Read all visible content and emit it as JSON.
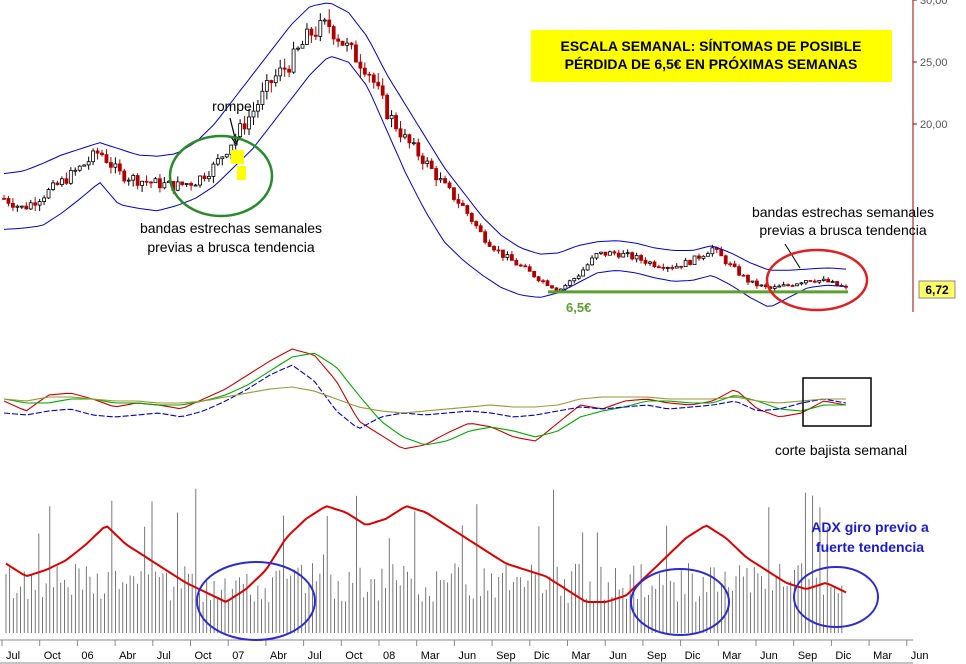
{
  "chart_data": {
    "type": "line",
    "title": "ESCALA SEMANAL: SÍNTOMAS DE POSIBLE",
    "subtitle": "PÉRDIDA DE 6,5€ EN PRÓXIMAS SEMANAS",
    "price_axis": {
      "ticks": [
        "30,00",
        "25,00",
        "20,00"
      ],
      "ylim": [
        4.5,
        30
      ]
    },
    "last_price": "6,72",
    "support_label": "6,5€",
    "support_value": 6.5,
    "x_labels": [
      "Jul",
      "Oct",
      "06",
      "Abr",
      "Jul",
      "Oct",
      "07",
      "Abr",
      "Jul",
      "Oct",
      "08",
      "Mar",
      "Jun",
      "Sep",
      "Dic",
      "Mar",
      "Jun",
      "Sep",
      "Dic",
      "Mar",
      "Jun",
      "Sep",
      "Dic",
      "Mar",
      "Jun"
    ],
    "series": [
      {
        "name": "",
        "color": "#000000",
        "values": [
          14.0,
          13.2,
          14.2,
          15.3,
          16.5,
          17.8,
          16.0,
          15.5,
          15.2,
          15.0,
          15.4,
          16.6,
          18.8,
          21.0,
          23.5,
          25.0,
          27.3,
          28.0,
          26.0,
          24.5,
          21.0,
          18.7,
          17.0,
          15.0,
          13.3,
          11.0,
          9.5,
          8.5,
          7.5,
          6.6,
          7.8,
          9.5,
          9.6,
          9.2,
          8.7,
          8.5,
          9.0,
          10.0,
          8.5,
          7.2,
          6.7,
          7.0,
          7.5,
          7.3,
          6.72
        ]
      },
      {
        "name": "",
        "color": "#0000cc",
        "values": [
          11.5,
          11.6,
          11.8,
          12.8,
          14.0,
          15.3,
          13.5,
          13.2,
          13.0,
          13.4,
          14.0,
          15.0,
          16.5,
          18.0,
          20.0,
          22.0,
          24.0,
          25.5,
          25.0,
          23.0,
          19.5,
          16.0,
          13.0,
          10.5,
          9.0,
          7.8,
          6.8,
          6.2,
          6.0,
          6.4,
          7.2,
          8.0,
          8.2,
          8.0,
          7.6,
          7.3,
          7.4,
          7.8,
          7.0,
          6.0,
          5.2,
          6.0,
          6.8,
          7.0,
          6.9
        ]
      },
      {
        "name": "",
        "color": "#0000cc",
        "values": [
          16.0,
          16.2,
          16.8,
          17.5,
          18.0,
          18.5,
          18.0,
          17.5,
          17.4,
          17.6,
          18.5,
          20.0,
          22.0,
          24.0,
          26.0,
          28.0,
          29.5,
          29.8,
          29.0,
          27.0,
          24.0,
          21.5,
          19.0,
          16.5,
          14.5,
          12.5,
          11.0,
          10.0,
          9.5,
          9.6,
          10.2,
          10.5,
          10.6,
          10.4,
          10.0,
          9.8,
          9.8,
          10.2,
          9.6,
          8.8,
          8.2,
          8.2,
          8.3,
          8.4,
          8.3
        ]
      }
    ],
    "indicators": {
      "oscillator": [
        {
          "color": "#cc0000",
          "values": [
            0.2,
            -0.3,
            0.5,
            0.6,
            0.3,
            -0.1,
            0.1,
            0.0,
            -0.2,
            0.3,
            0.8,
            1.5,
            2.2,
            2.8,
            2.5,
            1.2,
            -0.8,
            -1.5,
            -2.2,
            -2.0,
            -1.4,
            -0.9,
            -1.1,
            -1.6,
            -1.8,
            -0.9,
            0.0,
            -0.2,
            0.2,
            0.3,
            0.1,
            0.0,
            0.2,
            0.8,
            -0.2,
            -0.6,
            -0.4,
            0.2,
            0.0
          ]
        },
        {
          "color": "#00aa00",
          "values": [
            0.3,
            0.1,
            0.1,
            0.3,
            0.3,
            0.1,
            0.1,
            0.0,
            0.0,
            0.2,
            0.5,
            1.0,
            1.7,
            2.4,
            2.6,
            1.9,
            0.5,
            -0.8,
            -1.6,
            -2.0,
            -1.8,
            -1.3,
            -1.1,
            -1.3,
            -1.6,
            -1.3,
            -0.6,
            -0.3,
            -0.1,
            0.2,
            0.2,
            0.1,
            0.1,
            0.5,
            0.2,
            -0.2,
            -0.3,
            0.0,
            0.0
          ]
        },
        {
          "color": "#0000cc",
          "values": [
            -0.4,
            -0.5,
            -0.3,
            -0.2,
            -0.5,
            -0.6,
            -0.5,
            -0.4,
            -0.6,
            -0.3,
            0.2,
            0.8,
            1.5,
            2.0,
            1.2,
            -0.3,
            -1.2,
            -0.6,
            -0.4,
            -0.5,
            -0.4,
            -0.3,
            -0.4,
            -0.6,
            -0.5,
            -0.3,
            -0.1,
            -0.2,
            -0.1,
            0.0,
            -0.2,
            -0.1,
            0.0,
            0.2,
            -0.3,
            -0.2,
            0.1,
            0.3,
            0.1
          ]
        },
        {
          "color": "#999933",
          "values": [
            0.3,
            0.2,
            0.4,
            0.4,
            0.3,
            0.2,
            0.2,
            0.1,
            0.1,
            0.2,
            0.4,
            0.6,
            0.8,
            0.9,
            0.7,
            0.3,
            -0.1,
            -0.3,
            -0.4,
            -0.3,
            -0.2,
            -0.1,
            0.0,
            -0.1,
            -0.1,
            0.0,
            0.3,
            0.4,
            0.4,
            0.4,
            0.3,
            0.3,
            0.3,
            0.4,
            0.2,
            0.1,
            0.2,
            0.3,
            0.3
          ]
        }
      ],
      "adx": {
        "color": "#dd0000",
        "values": [
          22,
          18,
          20,
          23,
          28,
          34,
          28,
          24,
          20,
          16,
          13,
          10,
          14,
          20,
          30,
          36,
          40,
          38,
          34,
          36,
          40,
          38,
          34,
          30,
          26,
          22,
          20,
          18,
          14,
          10,
          10,
          12,
          18,
          24,
          30,
          34,
          30,
          24,
          20,
          16,
          14,
          16,
          13
        ]
      }
    },
    "annotations": [
      "rompe",
      "bandas estrechas semanales",
      "previas a brusca tendencia",
      "bandas estrechas semanales",
      "previas a brusca tendencia",
      "corte bajista semanal",
      "ADX giro previo a",
      "fuerte tendencia"
    ],
    "colors": {
      "title_bg": "#ffff00",
      "support": "#5aa02c",
      "last_price_bg": "#ffff66",
      "price_axis_line": "#990000"
    }
  }
}
